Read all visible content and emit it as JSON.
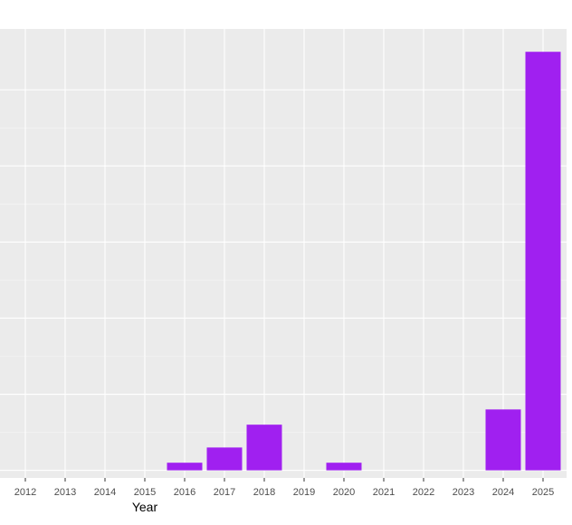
{
  "chart_data": {
    "type": "bar",
    "title": "",
    "xlabel": "Year",
    "ylabel": "",
    "categories": [
      "2012",
      "2013",
      "2014",
      "2015",
      "2016",
      "2017",
      "2018",
      "2019",
      "2020",
      "2021",
      "2022",
      "2023",
      "2024",
      "2025"
    ],
    "values": [
      0,
      0,
      0,
      0,
      1,
      3,
      6,
      0,
      1,
      0,
      0,
      0,
      8,
      55
    ],
    "ylim": [
      -1,
      58
    ],
    "y_gridlines": [
      0,
      10,
      20,
      30,
      40,
      50
    ],
    "grid": true,
    "legend": "none",
    "colors": {
      "bar": "#a020f0",
      "panel_background": "#ebebeb",
      "grid_major": "#ffffff",
      "grid_minor": "#f5f5f5",
      "tick_label": "#4d4d4d",
      "axis_title": "#000000"
    }
  }
}
